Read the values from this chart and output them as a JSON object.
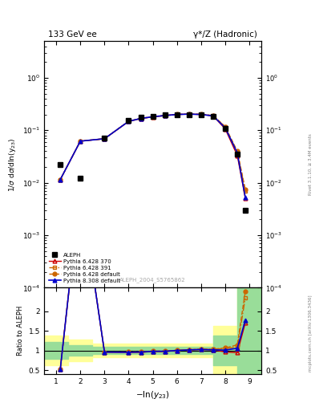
{
  "title_left": "133 GeV ee",
  "title_right": "γ*/Z (Hadronic)",
  "xlabel": "$-\\ln(y_{23})$",
  "ylabel_main": "1/σ dσ/dln(y$_{23}$)",
  "ylabel_ratio": "Ratio to ALEPH",
  "right_label_top": "Rivet 3.1.10, ≥ 3.4M events",
  "right_label_bot": "mcplots.cern.ch [arXiv:1306.3436]",
  "watermark": "ALEPH_2004_S5765862",
  "x_main": [
    1.17,
    2.0,
    3.0,
    4.0,
    4.5,
    5.0,
    5.5,
    6.0,
    6.5,
    7.0,
    7.5,
    8.0,
    8.5,
    8.83
  ],
  "aleph_y": [
    0.022,
    0.012,
    0.072,
    0.155,
    0.175,
    0.185,
    0.195,
    0.2,
    0.2,
    0.195,
    0.185,
    0.11,
    0.035,
    0.003
  ],
  "p6370_y": [
    0.0115,
    0.062,
    0.069,
    0.147,
    0.167,
    0.18,
    0.19,
    0.2,
    0.203,
    0.2,
    0.188,
    0.106,
    0.033,
    0.0051
  ],
  "p6391_y": [
    0.0115,
    0.062,
    0.069,
    0.147,
    0.167,
    0.18,
    0.19,
    0.2,
    0.203,
    0.2,
    0.19,
    0.116,
    0.038,
    0.007
  ],
  "p6def_y": [
    0.0115,
    0.062,
    0.069,
    0.149,
    0.169,
    0.182,
    0.192,
    0.201,
    0.204,
    0.202,
    0.191,
    0.117,
    0.04,
    0.0075
  ],
  "p8def_y": [
    0.0115,
    0.062,
    0.069,
    0.148,
    0.168,
    0.181,
    0.191,
    0.2,
    0.203,
    0.2,
    0.188,
    0.111,
    0.037,
    0.0053
  ],
  "color_p6370": "#cc0000",
  "color_p6391": "#cc6600",
  "color_p6def": "#cc6600",
  "color_p8def": "#0000cc",
  "yellow_x": [
    0.5,
    1.5,
    2.5,
    7.5,
    8.5,
    9.5
  ],
  "yellow_lo": [
    0.62,
    0.72,
    0.82,
    0.38,
    0.2,
    0.2
  ],
  "yellow_hi": [
    1.38,
    1.28,
    1.18,
    1.62,
    2.6,
    2.6
  ],
  "green_x": [
    0.5,
    1.5,
    2.5,
    7.5,
    8.5,
    9.5
  ],
  "green_lo": [
    0.78,
    0.86,
    0.9,
    0.62,
    0.3,
    0.3
  ],
  "green_hi": [
    1.22,
    1.14,
    1.1,
    1.38,
    2.6,
    2.6
  ],
  "xlim": [
    0.5,
    9.5
  ],
  "ylim_main": [
    0.0001,
    5.0
  ],
  "ylim_ratio": [
    0.4,
    2.6
  ],
  "yticks_ratio": [
    0.5,
    1.0,
    1.5,
    2.0
  ],
  "ytick_labels_ratio": [
    "0.5",
    "1",
    "1.5",
    "2"
  ]
}
